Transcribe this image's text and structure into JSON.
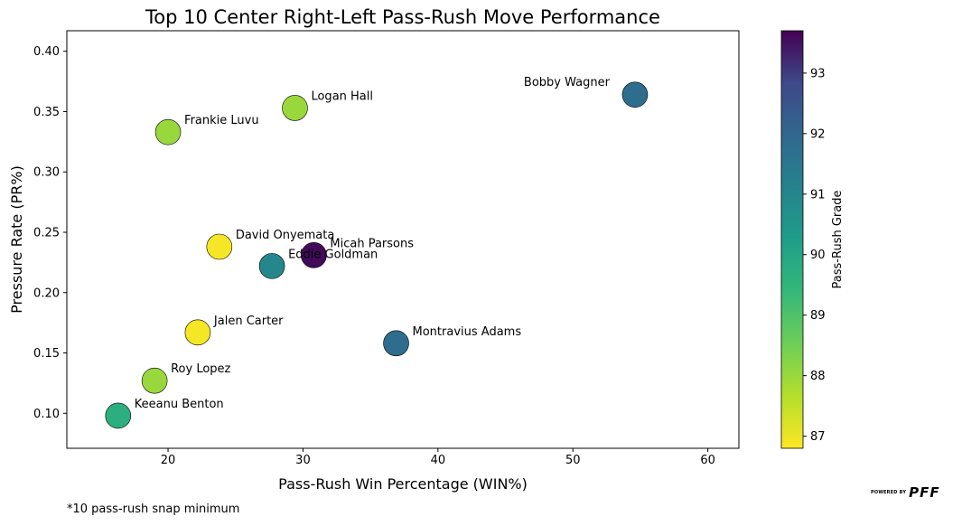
{
  "chart_data": {
    "type": "scatter",
    "title": "Top 10 Center Right-Left Pass-Rush Move Performance",
    "xlabel": "Pass-Rush Win Percentage (WIN%)",
    "ylabel": "Pressure Rate (PR%)",
    "xlim": [
      12.5,
      62.3
    ],
    "ylim": [
      0.071,
      0.417
    ],
    "xticks": [
      20,
      30,
      40,
      50,
      60
    ],
    "yticks": [
      0.1,
      0.15,
      0.2,
      0.25,
      0.3,
      0.35,
      0.4
    ],
    "colorbar": {
      "label": "Pass-Rush Grade",
      "range": [
        86.8,
        93.7
      ],
      "ticks": [
        87,
        88,
        89,
        90,
        91,
        92,
        93
      ],
      "colormap": "viridis_r"
    },
    "points": [
      {
        "name": "Bobby Wagner",
        "x": 54.6,
        "y": 0.364,
        "grade": 91.8
      },
      {
        "name": "Logan Hall",
        "x": 29.4,
        "y": 0.353,
        "grade": 88.0
      },
      {
        "name": "Frankie Luvu",
        "x": 20.0,
        "y": 0.333,
        "grade": 88.0
      },
      {
        "name": "David Onyemata",
        "x": 23.8,
        "y": 0.238,
        "grade": 86.9
      },
      {
        "name": "Micah Parsons",
        "x": 30.8,
        "y": 0.231,
        "grade": 93.6
      },
      {
        "name": "Eddie Goldman",
        "x": 27.7,
        "y": 0.222,
        "grade": 91.0
      },
      {
        "name": "Jalen Carter",
        "x": 22.2,
        "y": 0.167,
        "grade": 86.9
      },
      {
        "name": "Montravius Adams",
        "x": 36.9,
        "y": 0.158,
        "grade": 91.8
      },
      {
        "name": "Roy Lopez",
        "x": 19.0,
        "y": 0.127,
        "grade": 88.0
      },
      {
        "name": "Keeanu Benton",
        "x": 16.3,
        "y": 0.098,
        "grade": 89.7
      }
    ]
  },
  "footnote": "*10 pass-rush snap minimum",
  "branding": {
    "powered_by": "POWERED BY",
    "logo_text": "PFF"
  }
}
